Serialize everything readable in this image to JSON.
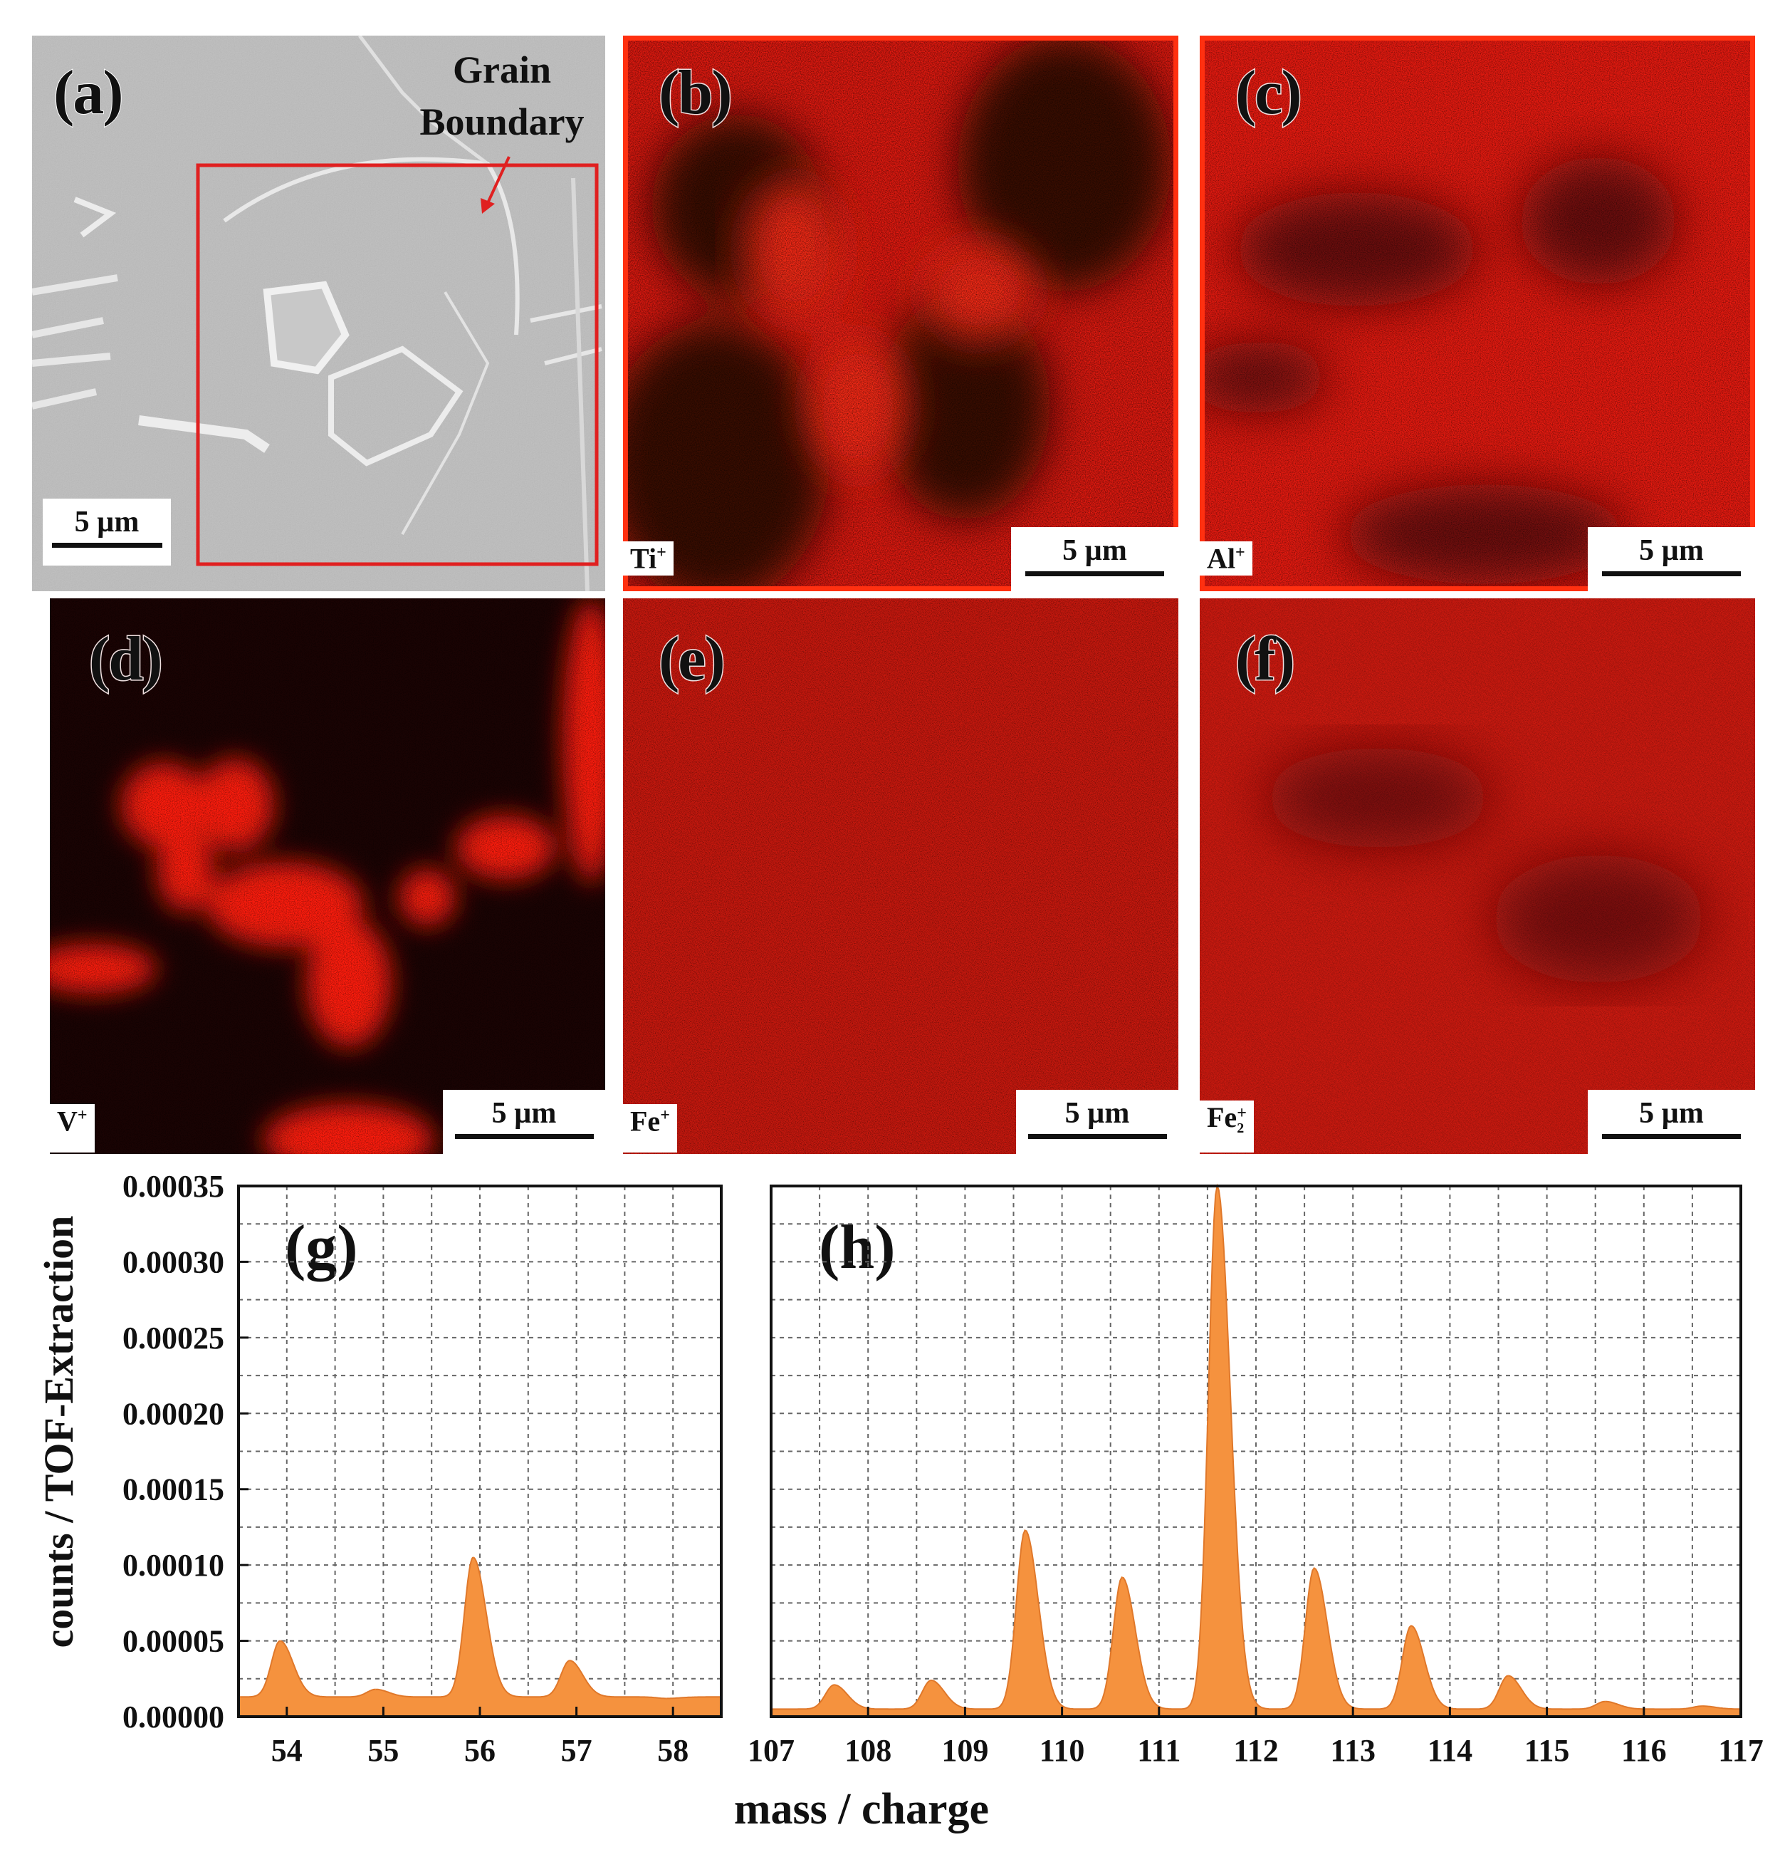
{
  "panels": {
    "a": {
      "letter": "(a)",
      "annotation_line1": "Grain",
      "annotation_line2": "Boundary",
      "scale": "5 µm"
    },
    "b": {
      "letter": "(b)",
      "ion": "Ti",
      "charge": "+",
      "scale": "5 µm"
    },
    "c": {
      "letter": "(c)",
      "ion": "Al",
      "charge": "+",
      "scale": "5 µm"
    },
    "d": {
      "letter": "(d)",
      "ion": "V",
      "charge": "+",
      "scale": "5 µm"
    },
    "e": {
      "letter": "(e)",
      "ion": "Fe",
      "charge": "+",
      "scale": "5 µm"
    },
    "f": {
      "letter": "(f)",
      "ion": "Fe",
      "sub": "2",
      "charge": "+",
      "scale": "5 µm"
    }
  },
  "colors": {
    "map_bright": "#ff1a10",
    "map_dark": "#2a0a08",
    "spectrum_fill": "#f5923e",
    "sem_gray": "#bdbdbd",
    "roi_box": "#e02020"
  },
  "chart_data": [
    {
      "type": "area",
      "panel": "(g)",
      "ylabel": "counts / TOF-Extraction",
      "xlabel": "mass / charge",
      "xlim": [
        53.5,
        58.5
      ],
      "ylim": [
        0,
        0.00035
      ],
      "xticks": [
        "54",
        "55",
        "56",
        "57",
        "58"
      ],
      "yticks": [
        "0.00000",
        "0.00005",
        "0.00010",
        "0.00015",
        "0.00020",
        "0.00025",
        "0.00030",
        "0.00035"
      ],
      "grid": true,
      "baseline": 1.3e-05,
      "peaks": [
        {
          "x": 53.93,
          "y": 5e-05
        },
        {
          "x": 54.92,
          "y": 1.8e-05
        },
        {
          "x": 55.93,
          "y": 0.000105
        },
        {
          "x": 56.93,
          "y": 3.7e-05
        },
        {
          "x": 57.93,
          "y": 1.2e-05
        }
      ]
    },
    {
      "type": "area",
      "panel": "(h)",
      "xlabel": "mass / charge",
      "xlim": [
        107,
        117
      ],
      "ylim": [
        0,
        0.00035
      ],
      "xticks": [
        "107",
        "108",
        "109",
        "110",
        "111",
        "112",
        "113",
        "114",
        "115",
        "116",
        "117"
      ],
      "grid": true,
      "baseline": 5e-06,
      "peaks": [
        {
          "x": 107.65,
          "y": 2.1e-05
        },
        {
          "x": 108.65,
          "y": 2.4e-05
        },
        {
          "x": 109.62,
          "y": 0.000123
        },
        {
          "x": 110.62,
          "y": 9.2e-05
        },
        {
          "x": 111.6,
          "y": 0.00035
        },
        {
          "x": 112.6,
          "y": 9.8e-05
        },
        {
          "x": 113.6,
          "y": 6e-05
        },
        {
          "x": 114.6,
          "y": 2.7e-05
        },
        {
          "x": 115.6,
          "y": 1e-05
        },
        {
          "x": 116.6,
          "y": 7e-06
        }
      ]
    }
  ]
}
